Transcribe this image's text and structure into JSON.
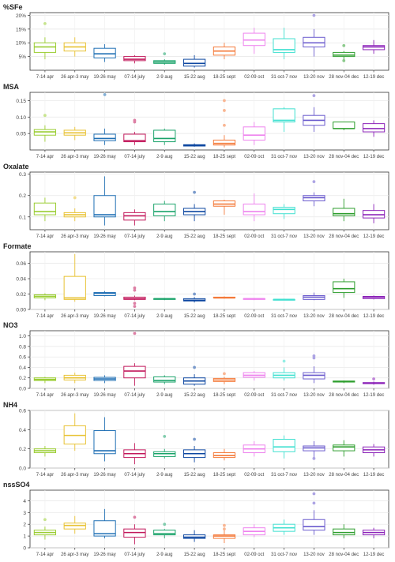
{
  "chart_data": {
    "type": "box",
    "categories": [
      "7-14 apr",
      "26 apr-3 may",
      "19-26 may",
      "07-14 july",
      "2-9 aug",
      "15-22 aug",
      "18-25 sept",
      "02-09 oct",
      "31 oct-7 nov",
      "13-20 nov",
      "28 nov-04 dec",
      "12-19 dec"
    ],
    "colors": [
      "#9acd32",
      "#e8c233",
      "#1f6fb4",
      "#c2185b",
      "#1aa36a",
      "#0d47a1",
      "#f47a3a",
      "#ee82ee",
      "#40e0d0",
      "#6a5acd",
      "#2e9e2e",
      "#8b22b8"
    ],
    "panels": [
      {
        "title": "%SFe",
        "ylim": [
          0,
          0.21
        ],
        "ticks": [
          0.05,
          0.1,
          0.15,
          0.2
        ],
        "tick_labels": [
          "5%",
          "10%",
          "15%",
          "20%"
        ],
        "boxes": [
          [
            0.04,
            0.065,
            0.085,
            0.1,
            0.12
          ],
          [
            0.05,
            0.07,
            0.085,
            0.1,
            0.12
          ],
          [
            0.03,
            0.045,
            0.06,
            0.08,
            0.095
          ],
          [
            0.025,
            0.035,
            0.04,
            0.05,
            0.055
          ],
          [
            0.02,
            0.025,
            0.03,
            0.035,
            0.04
          ],
          [
            0.01,
            0.015,
            0.025,
            0.04,
            0.055
          ],
          [
            0.04,
            0.055,
            0.07,
            0.085,
            0.1
          ],
          [
            0.06,
            0.09,
            0.11,
            0.135,
            0.155
          ],
          [
            0.04,
            0.065,
            0.075,
            0.115,
            0.155
          ],
          [
            0.05,
            0.085,
            0.1,
            0.12,
            0.15
          ],
          [
            0.04,
            0.05,
            0.055,
            0.065,
            0.07
          ],
          [
            0.06,
            0.075,
            0.085,
            0.09,
            0.11
          ]
        ],
        "outliers": [
          [
            [
              0.17
            ]
          ],
          [],
          [],
          [],
          [
            [
              0.06
            ]
          ],
          [],
          [],
          [],
          [],
          [
            [
              0.2
            ]
          ],
          [
            [
              0.09
            ],
            [
              0.035
            ]
          ],
          []
        ]
      },
      {
        "title": "MSA",
        "ylim": [
          0,
          0.175
        ],
        "ticks": [
          0.05,
          0.1,
          0.15
        ],
        "tick_labels": [
          "0.05",
          "0.10",
          "0.15"
        ],
        "boxes": [
          [
            0.025,
            0.045,
            0.055,
            0.062,
            0.075
          ],
          [
            0.03,
            0.045,
            0.052,
            0.06,
            0.07
          ],
          [
            0.015,
            0.028,
            0.035,
            0.048,
            0.065
          ],
          [
            0.015,
            0.025,
            0.028,
            0.048,
            0.055
          ],
          [
            0.015,
            0.025,
            0.035,
            0.06,
            0.065
          ],
          [
            0.01,
            0.012,
            0.014,
            0.016,
            0.02
          ],
          [
            0.008,
            0.015,
            0.02,
            0.03,
            0.045
          ],
          [
            0.015,
            0.03,
            0.045,
            0.07,
            0.085
          ],
          [
            0.055,
            0.085,
            0.09,
            0.125,
            0.13
          ],
          [
            0.055,
            0.075,
            0.09,
            0.105,
            0.13
          ],
          [
            0.06,
            0.065,
            0.065,
            0.085,
            0.085
          ],
          [
            0.04,
            0.055,
            0.065,
            0.08,
            0.09
          ]
        ],
        "outliers": [
          [
            [
              0.105
            ]
          ],
          [],
          [
            [
              0.168
            ]
          ],
          [
            [
              0.085
            ],
            [
              0.09
            ]
          ],
          [],
          [],
          [
            [
              0.15
            ],
            [
              0.12
            ],
            [
              0.075
            ]
          ],
          [],
          [],
          [
            [
              0.165
            ]
          ],
          [],
          []
        ]
      },
      {
        "title": "Oxalate",
        "ylim": [
          0.04,
          0.31
        ],
        "ticks": [
          0.1,
          0.2,
          0.3
        ],
        "tick_labels": [
          "0.1",
          "0.2",
          "0.3"
        ],
        "boxes": [
          [
            0.08,
            0.11,
            0.125,
            0.165,
            0.19
          ],
          [
            0.08,
            0.1,
            0.11,
            0.12,
            0.14
          ],
          [
            0.06,
            0.1,
            0.11,
            0.2,
            0.29
          ],
          [
            0.06,
            0.085,
            0.105,
            0.12,
            0.135
          ],
          [
            0.08,
            0.105,
            0.125,
            0.16,
            0.175
          ],
          [
            0.08,
            0.11,
            0.125,
            0.14,
            0.16
          ],
          [
            0.11,
            0.15,
            0.16,
            0.175,
            0.18
          ],
          [
            0.08,
            0.11,
            0.125,
            0.16,
            0.21
          ],
          [
            0.09,
            0.115,
            0.135,
            0.145,
            0.16
          ],
          [
            0.15,
            0.175,
            0.19,
            0.2,
            0.215
          ],
          [
            0.08,
            0.105,
            0.115,
            0.14,
            0.185
          ],
          [
            0.07,
            0.095,
            0.11,
            0.13,
            0.16
          ]
        ],
        "outliers": [
          [],
          [
            [
              0.19
            ]
          ],
          [],
          [],
          [],
          [
            [
              0.215
            ]
          ],
          [],
          [],
          [],
          [
            [
              0.265
            ]
          ],
          [],
          []
        ]
      },
      {
        "title": "Formate",
        "ylim": [
          0,
          0.075
        ],
        "ticks": [
          0.0,
          0.02,
          0.04,
          0.06
        ],
        "tick_labels": [
          "0.00",
          "0.02",
          "0.04",
          "0.06"
        ],
        "boxes": [
          [
            0.012,
            0.015,
            0.017,
            0.019,
            0.021
          ],
          [
            0.01,
            0.013,
            0.015,
            0.043,
            0.072
          ],
          [
            0.017,
            0.018,
            0.021,
            0.022,
            0.024
          ],
          [
            0.012,
            0.013,
            0.014,
            0.016,
            0.018
          ],
          [
            0.012,
            0.013,
            0.014,
            0.014,
            0.015
          ],
          [
            0.009,
            0.011,
            0.012,
            0.014,
            0.016
          ],
          [
            0.014,
            0.015,
            0.015,
            0.016,
            0.017
          ],
          [
            0.012,
            0.013,
            0.014,
            0.014,
            0.015
          ],
          [
            0.012,
            0.013,
            0.013,
            0.013,
            0.014
          ],
          [
            0.012,
            0.013,
            0.016,
            0.018,
            0.022
          ],
          [
            0.015,
            0.022,
            0.027,
            0.036,
            0.04
          ],
          [
            0.013,
            0.014,
            0.016,
            0.017,
            0.018
          ]
        ],
        "outliers": [
          [],
          [],
          [],
          [
            [
              0.028
            ],
            [
              0.025
            ],
            [
              0.008
            ],
            [
              0.004
            ]
          ],
          [],
          [
            [
              0.02
            ]
          ],
          [],
          [],
          [],
          [],
          [],
          []
        ]
      },
      {
        "title": "NO3",
        "ylim": [
          0,
          1.1
        ],
        "ticks": [
          0.0,
          0.2,
          0.4,
          0.6,
          0.8,
          1.0
        ],
        "tick_labels": [
          "0.0",
          "0.2",
          "0.4",
          "0.6",
          "0.8",
          "1.0"
        ],
        "boxes": [
          [
            0.1,
            0.15,
            0.17,
            0.2,
            0.22
          ],
          [
            0.1,
            0.16,
            0.2,
            0.25,
            0.3
          ],
          [
            0.1,
            0.15,
            0.18,
            0.21,
            0.25
          ],
          [
            0.05,
            0.2,
            0.33,
            0.42,
            0.48
          ],
          [
            0.08,
            0.12,
            0.15,
            0.22,
            0.25
          ],
          [
            0.05,
            0.08,
            0.14,
            0.2,
            0.27
          ],
          [
            0.08,
            0.13,
            0.16,
            0.19,
            0.22
          ],
          [
            0.15,
            0.21,
            0.25,
            0.3,
            0.33
          ],
          [
            0.15,
            0.2,
            0.25,
            0.3,
            0.4
          ],
          [
            0.1,
            0.18,
            0.25,
            0.3,
            0.42
          ],
          [
            0.1,
            0.12,
            0.13,
            0.14,
            0.15
          ],
          [
            0.07,
            0.09,
            0.1,
            0.11,
            0.13
          ]
        ],
        "outliers": [
          [],
          [],
          [],
          [
            [
              1.05
            ]
          ],
          [],
          [
            [
              0.4
            ]
          ],
          [
            [
              0.28
            ]
          ],
          [],
          [
            [
              0.52
            ]
          ],
          [
            [
              0.62
            ],
            [
              0.58
            ]
          ],
          [],
          [
            [
              0.18
            ]
          ]
        ]
      },
      {
        "title": "NH4",
        "ylim": [
          0,
          0.6
        ],
        "ticks": [
          0.0,
          0.2,
          0.4,
          0.6
        ],
        "tick_labels": [
          "0.0",
          "0.2",
          "0.4",
          "0.6"
        ],
        "boxes": [
          [
            0.12,
            0.16,
            0.18,
            0.2,
            0.23
          ],
          [
            0.18,
            0.25,
            0.34,
            0.44,
            0.57
          ],
          [
            0.07,
            0.15,
            0.18,
            0.39,
            0.53
          ],
          [
            0.04,
            0.11,
            0.15,
            0.19,
            0.26
          ],
          [
            0.1,
            0.12,
            0.15,
            0.17,
            0.2
          ],
          [
            0.06,
            0.11,
            0.15,
            0.19,
            0.23
          ],
          [
            0.08,
            0.11,
            0.13,
            0.16,
            0.2
          ],
          [
            0.12,
            0.16,
            0.2,
            0.24,
            0.28
          ],
          [
            0.1,
            0.17,
            0.22,
            0.3,
            0.34
          ],
          [
            0.1,
            0.18,
            0.21,
            0.23,
            0.28
          ],
          [
            0.12,
            0.18,
            0.22,
            0.24,
            0.29
          ],
          [
            0.12,
            0.16,
            0.19,
            0.22,
            0.25
          ]
        ],
        "outliers": [
          [],
          [],
          [],
          [],
          [
            [
              0.33
            ]
          ],
          [
            [
              0.3
            ]
          ],
          [],
          [],
          [],
          [
            [
              0.1
            ]
          ],
          [],
          []
        ]
      },
      {
        "title": "nssSO4",
        "ylim": [
          0,
          4.9
        ],
        "ticks": [
          0,
          1,
          2,
          3,
          4
        ],
        "tick_labels": [
          "0",
          "1",
          "2",
          "3",
          "4"
        ],
        "boxes": [
          [
            0.7,
            1.1,
            1.3,
            1.5,
            1.8
          ],
          [
            1.2,
            1.6,
            1.9,
            2.1,
            2.7
          ],
          [
            0.8,
            1.0,
            1.2,
            2.3,
            3.3
          ],
          [
            0.3,
            0.9,
            1.3,
            1.6,
            2.0
          ],
          [
            0.8,
            1.1,
            1.2,
            1.5,
            1.6
          ],
          [
            0.5,
            0.8,
            0.9,
            1.1,
            1.5
          ],
          [
            0.4,
            0.8,
            1.0,
            1.1,
            1.5
          ],
          [
            0.9,
            1.1,
            1.4,
            1.7,
            2.0
          ],
          [
            1.1,
            1.4,
            1.7,
            2.0,
            2.4
          ],
          [
            1.1,
            1.5,
            1.8,
            2.4,
            3.2
          ],
          [
            0.8,
            1.1,
            1.3,
            1.6,
            2.0
          ],
          [
            0.8,
            1.1,
            1.3,
            1.5,
            1.7
          ]
        ],
        "outliers": [
          [
            [
              2.4
            ]
          ],
          [],
          [],
          [
            [
              2.6
            ]
          ],
          [
            [
              2.0
            ]
          ],
          [],
          [
            [
              1.9
            ],
            [
              1.6
            ]
          ],
          [],
          [],
          [
            [
              4.6
            ],
            [
              3.8
            ]
          ],
          [],
          []
        ]
      }
    ]
  }
}
